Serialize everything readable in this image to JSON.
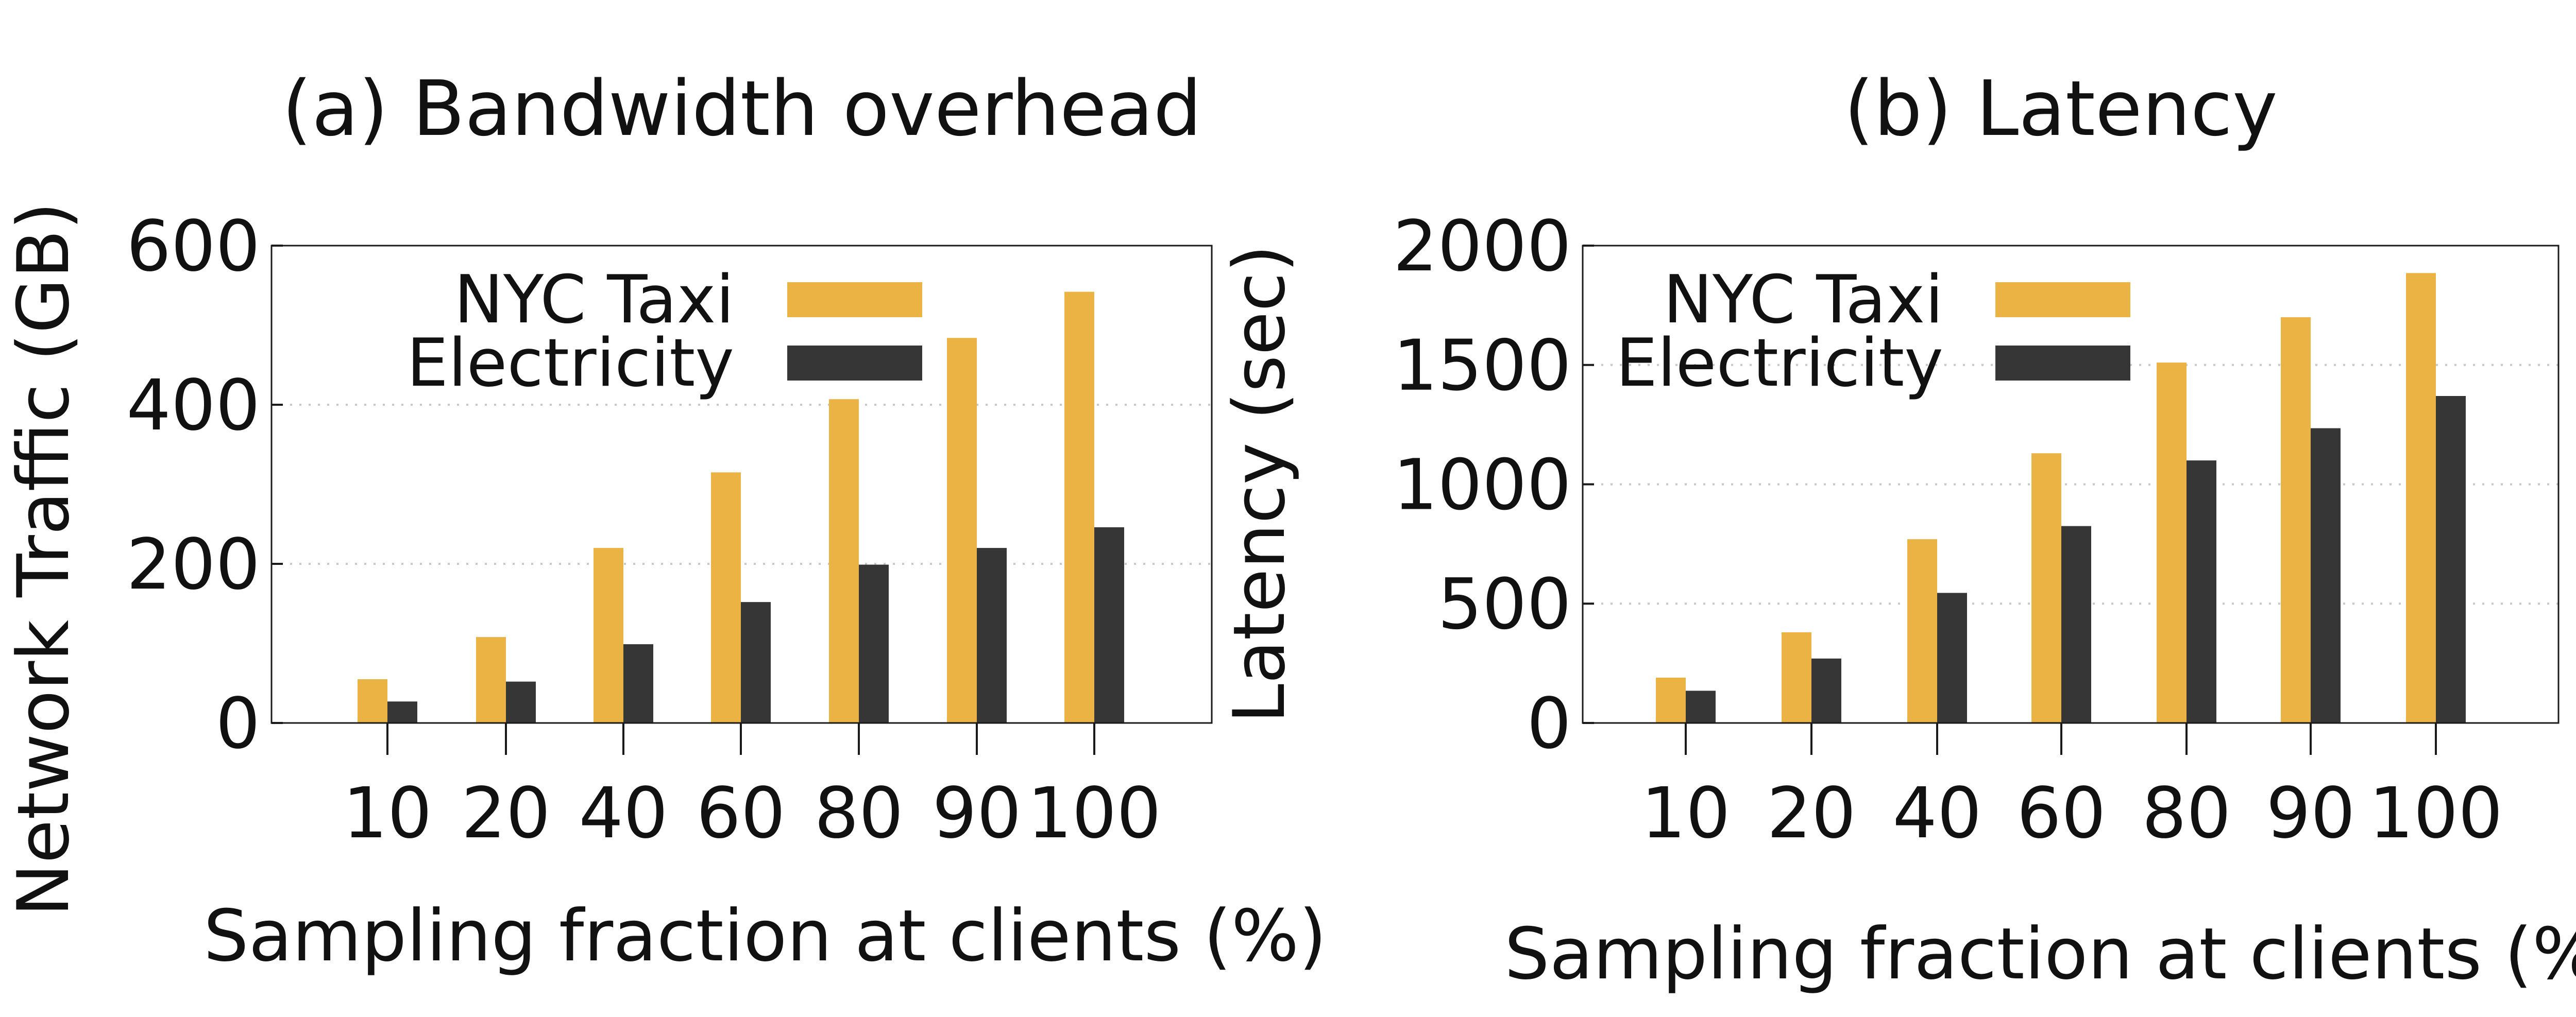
{
  "chart_data": [
    {
      "type": "bar",
      "title": "(a) Bandwidth overhead",
      "xlabel": "Sampling fraction at clients (%)",
      "ylabel": "Network Traffic (GB)",
      "categories": [
        "10",
        "20",
        "40",
        "60",
        "80",
        "90",
        "100"
      ],
      "ylim": [
        0,
        600
      ],
      "yticks": [
        "0",
        "200",
        "400",
        "600"
      ],
      "grid": true,
      "legend_position": "top-left",
      "series": [
        {
          "name": "NYC Taxi",
          "color": "#EBB244",
          "values": [
            55,
            108,
            220,
            315,
            407,
            484,
            542
          ]
        },
        {
          "name": "Electricity",
          "color": "#363636",
          "values": [
            27,
            52,
            99,
            152,
            199,
            220,
            246
          ]
        }
      ]
    },
    {
      "type": "bar",
      "title": "(b) Latency",
      "xlabel": "Sampling fraction at clients (%)",
      "ylabel": "Latency (sec)",
      "categories": [
        "10",
        "20",
        "40",
        "60",
        "80",
        "90",
        "100"
      ],
      "ylim": [
        0,
        2000
      ],
      "yticks": [
        "0",
        "500",
        "1000",
        "1500",
        "2000"
      ],
      "grid": true,
      "legend_position": "top-left",
      "series": [
        {
          "name": "NYC Taxi",
          "color": "#EBB244",
          "values": [
            190,
            380,
            770,
            1130,
            1510,
            1700,
            1885
          ]
        },
        {
          "name": "Electricity",
          "color": "#363636",
          "values": [
            135,
            270,
            545,
            825,
            1100,
            1235,
            1370
          ]
        }
      ]
    }
  ]
}
